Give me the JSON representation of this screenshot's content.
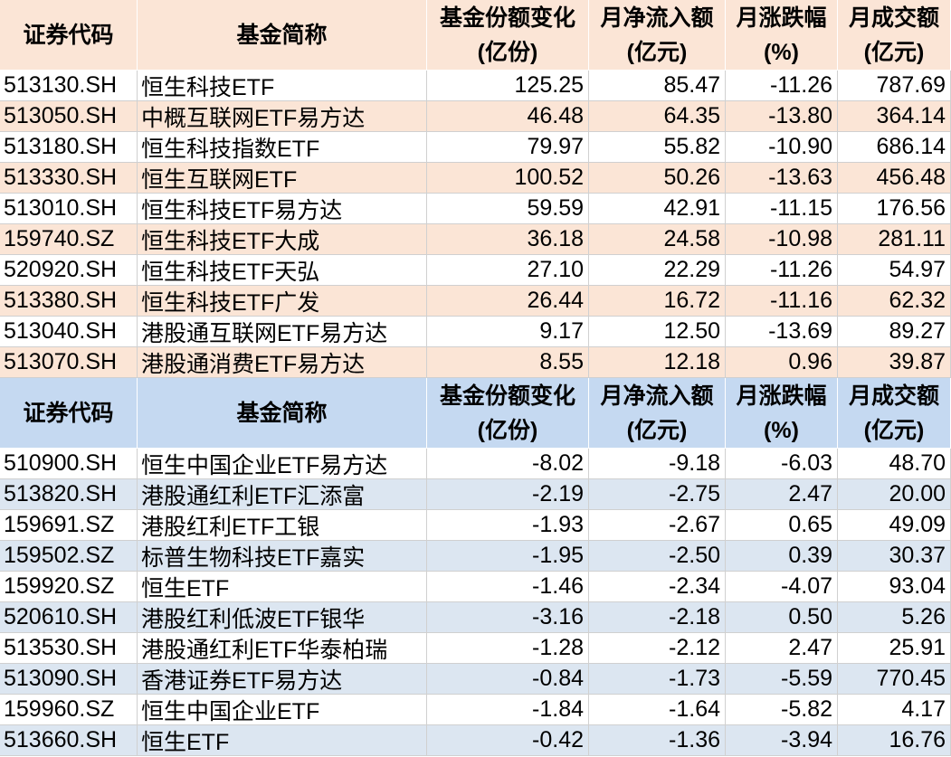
{
  "tables": [
    {
      "header": [
        [
          "证券代码"
        ],
        [
          "基金简称"
        ],
        [
          "基金份额变化",
          "(亿份)"
        ],
        [
          "月净流入额",
          "(亿元)"
        ],
        [
          "月涨跌幅",
          "(%)"
        ],
        [
          "月成交额",
          "(亿元)"
        ]
      ],
      "rows": [
        [
          "513130.SH",
          "恒生科技ETF",
          "125.25",
          "85.47",
          "-11.26",
          "787.69"
        ],
        [
          "513050.SH",
          "中概互联网ETF易方达",
          "46.48",
          "64.35",
          "-13.80",
          "364.14"
        ],
        [
          "513180.SH",
          "恒生科技指数ETF",
          "79.97",
          "55.82",
          "-10.90",
          "686.14"
        ],
        [
          "513330.SH",
          "恒生互联网ETF",
          "100.52",
          "50.26",
          "-13.63",
          "456.48"
        ],
        [
          "513010.SH",
          "恒生科技ETF易方达",
          "59.59",
          "42.91",
          "-11.15",
          "176.56"
        ],
        [
          "159740.SZ",
          "恒生科技ETF大成",
          "36.18",
          "24.58",
          "-10.98",
          "281.11"
        ],
        [
          "520920.SH",
          "恒生科技ETF天弘",
          "27.10",
          "22.29",
          "-11.26",
          "54.97"
        ],
        [
          "513380.SH",
          "恒生科技ETF广发",
          "26.44",
          "16.72",
          "-11.16",
          "62.32"
        ],
        [
          "513040.SH",
          "港股通互联网ETF易方达",
          "9.17",
          "12.50",
          "-13.69",
          "89.27"
        ],
        [
          "513070.SH",
          "港股通消费ETF易方达",
          "8.55",
          "12.18",
          "0.96",
          "39.87"
        ]
      ]
    },
    {
      "header": [
        [
          "证券代码"
        ],
        [
          "基金简称"
        ],
        [
          "基金份额变化",
          "(亿份)"
        ],
        [
          "月净流入额",
          "(亿元)"
        ],
        [
          "月涨跌幅",
          "(%)"
        ],
        [
          "月成交额",
          "(亿元)"
        ]
      ],
      "rows": [
        [
          "510900.SH",
          "恒生中国企业ETF易方达",
          "-8.02",
          "-9.18",
          "-6.03",
          "48.70"
        ],
        [
          "513820.SH",
          "港股通红利ETF汇添富",
          "-2.19",
          "-2.75",
          "2.47",
          "20.00"
        ],
        [
          "159691.SZ",
          "港股红利ETF工银",
          "-1.93",
          "-2.67",
          "0.65",
          "49.09"
        ],
        [
          "159502.SZ",
          "标普生物科技ETF嘉实",
          "-1.95",
          "-2.50",
          "0.39",
          "30.37"
        ],
        [
          "159920.SZ",
          "恒生ETF",
          "-1.46",
          "-2.34",
          "-4.07",
          "93.04"
        ],
        [
          "520610.SH",
          "港股红利低波ETF银华",
          "-3.16",
          "-2.18",
          "0.50",
          "5.26"
        ],
        [
          "513530.SH",
          "港股通红利ETF华泰柏瑞",
          "-1.28",
          "-2.12",
          "2.47",
          "25.91"
        ],
        [
          "513090.SH",
          "香港证券ETF易方达",
          "-0.84",
          "-1.73",
          "-5.59",
          "770.45"
        ],
        [
          "159960.SZ",
          "恒生中国企业ETF",
          "-1.84",
          "-1.64",
          "-5.82",
          "4.17"
        ],
        [
          "513660.SH",
          "恒生ETF",
          "-0.42",
          "-1.36",
          "-3.94",
          "16.76"
        ]
      ]
    }
  ]
}
